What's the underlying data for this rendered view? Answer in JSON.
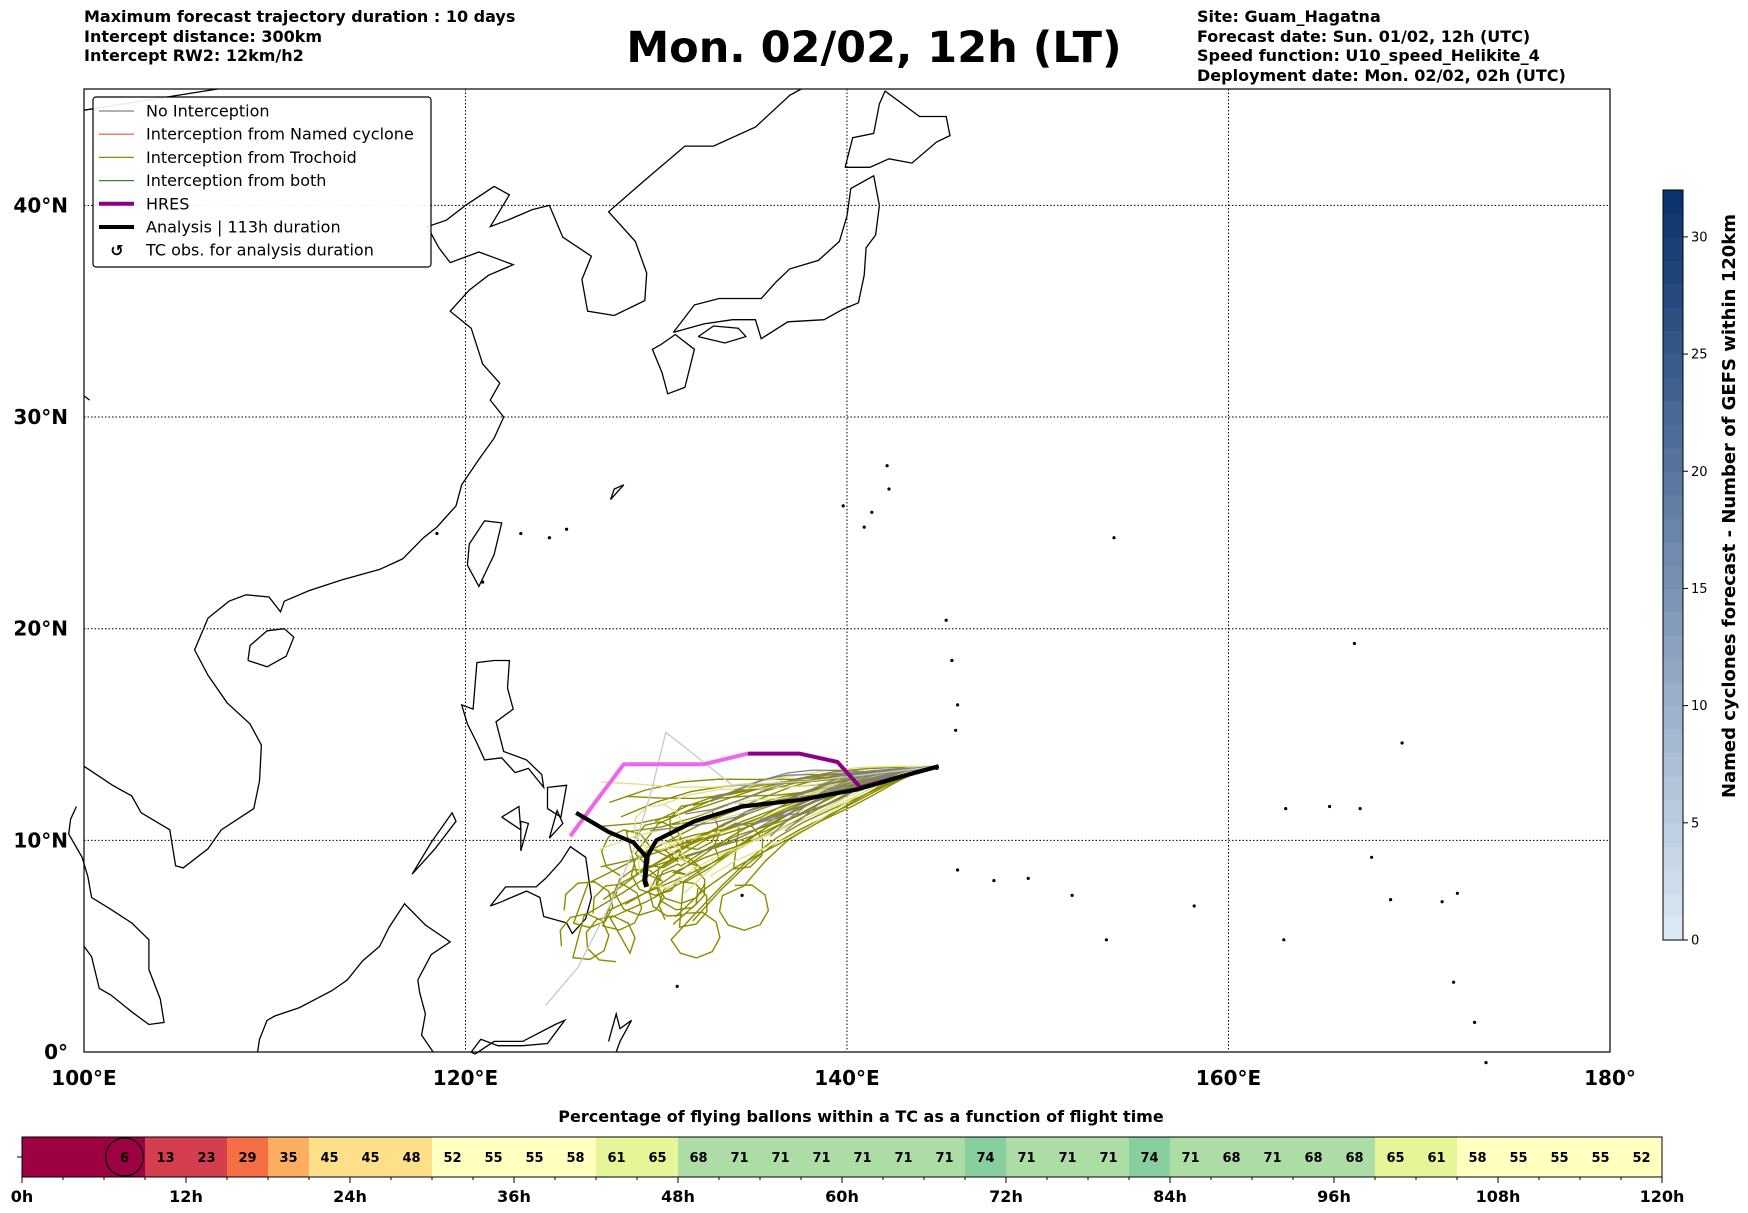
{
  "header": {
    "left": [
      "Maximum forecast trajectory duration : 10 days",
      "Intercept distance: 300km",
      "Intercept RW2: 12km/h2"
    ],
    "right": [
      "Site: Guam_Hagatna",
      "Forecast date: Sun. 01/02, 12h (UTC)",
      "Speed function: U10_speed_Helikite_4",
      "Deployment date: Mon. 02/02, 02h (UTC)"
    ],
    "title": "Mon. 02/02, 12h (LT)"
  },
  "legend": {
    "items": [
      {
        "label": "No Interception",
        "color": "#808080",
        "style": "thin"
      },
      {
        "label": "Interception from Named cyclone",
        "color": "#e8542a",
        "style": "thin"
      },
      {
        "label": "Interception from Trochoid",
        "color": "#8b8b00",
        "style": "thin"
      },
      {
        "label": "Interception from both",
        "color": "#2e8b2e",
        "style": "thin"
      },
      {
        "label": "HRES",
        "color": "#8b008b",
        "style": "thick"
      },
      {
        "label": "Analysis | 113h duration",
        "color": "#000000",
        "style": "thick"
      },
      {
        "label": "TC obs. for analysis duration",
        "color": "#000000",
        "style": "marker"
      }
    ]
  },
  "map": {
    "x_ticks": [
      "100°E",
      "120°E",
      "140°E",
      "160°E",
      "180°"
    ],
    "y_ticks": [
      "0°",
      "10°N",
      "20°N",
      "30°N",
      "40°N"
    ],
    "colorbar": {
      "label": "Named cyclones forecast - Number of GEFS within 120km",
      "ticks": [
        "0",
        "5",
        "10",
        "15",
        "20",
        "25",
        "30"
      ],
      "min": 0,
      "max": 32
    }
  },
  "chart_data": [
    {
      "type": "line",
      "xlabel": "",
      "ylabel": "",
      "xlim": [
        100,
        180
      ],
      "ylim": [
        0,
        45.5
      ],
      "series": [
        {
          "name": "HRES",
          "x": [
            125.5,
            126.8,
            128.3,
            132.5,
            134.8,
            137.5,
            139.5,
            140.7,
            144.8
          ],
          "y": [
            10.2,
            11.8,
            13.6,
            13.6,
            14.1,
            14.1,
            13.7,
            12.5,
            13.5
          ]
        },
        {
          "name": "Analysis | 113h duration",
          "x": [
            125.8,
            127.5,
            128.8,
            129.5,
            130.0,
            132.0,
            134.5,
            137.5,
            140.5,
            143.2,
            144.8
          ],
          "y": [
            11.3,
            10.4,
            9.9,
            9.2,
            10.0,
            10.9,
            11.6,
            11.9,
            12.4,
            13.1,
            13.5
          ]
        }
      ]
    },
    {
      "type": "bar",
      "title": "Percentage of flying ballons within a TC as a function of flight time",
      "x_ticks": [
        "0h",
        "12h",
        "24h",
        "36h",
        "48h",
        "60h",
        "72h",
        "84h",
        "96h",
        "108h",
        "120h"
      ],
      "values": [
        0,
        0,
        6,
        13,
        23,
        29,
        35,
        45,
        45,
        48,
        52,
        55,
        55,
        58,
        61,
        65,
        68,
        71,
        71,
        71,
        71,
        71,
        71,
        74,
        71,
        71,
        71,
        74,
        71,
        68,
        71,
        68,
        68,
        65,
        61,
        58,
        55,
        55,
        55,
        52
      ]
    }
  ],
  "colors": {
    "no_interception": "#808080",
    "trochoid": "#8b8b00",
    "trochoid_light": "#e0e088",
    "hres": "#8b008b",
    "hres_light": "#ee66ee",
    "analysis": "#000000"
  }
}
